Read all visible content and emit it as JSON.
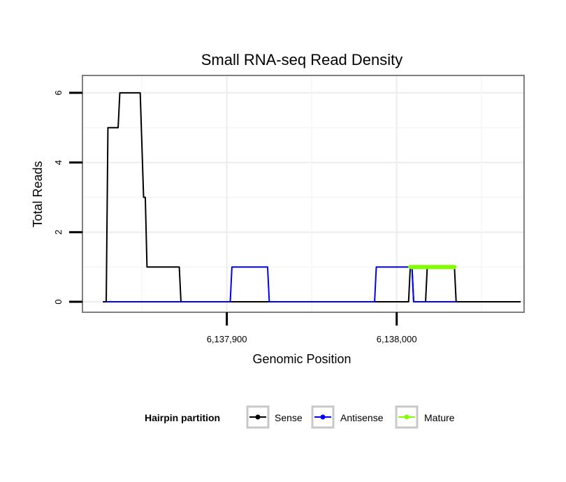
{
  "chart_data": {
    "type": "line",
    "title": "Small RNA-seq Read Density",
    "xlabel": "Genomic Position",
    "ylabel": "Total Reads",
    "xlim": [
      6137815,
      6138075
    ],
    "ylim": [
      -0.3,
      6.5
    ],
    "grid": true,
    "x_ticks": [
      {
        "value": 6137900,
        "label": "6,137,900"
      },
      {
        "value": 6138000,
        "label": "6,138,000"
      }
    ],
    "y_ticks": [
      {
        "value": 0,
        "label": "0"
      },
      {
        "value": 2,
        "label": "2"
      },
      {
        "value": 4,
        "label": "4"
      },
      {
        "value": 6,
        "label": "6"
      }
    ],
    "legend": {
      "title": "Hairpin partition",
      "placement": "bottom",
      "entries": [
        "Sense",
        "Antisense",
        "Mature"
      ]
    },
    "series": [
      {
        "name": "Sense",
        "color": "#000000",
        "width": 2,
        "points": [
          [
            6137827,
            0
          ],
          [
            6137829,
            0
          ],
          [
            6137830,
            5
          ],
          [
            6137836,
            5
          ],
          [
            6137837,
            6
          ],
          [
            6137849,
            6
          ],
          [
            6137851,
            3
          ],
          [
            6137852,
            3
          ],
          [
            6137853,
            1
          ],
          [
            6137872,
            1
          ],
          [
            6137873,
            0
          ],
          [
            6138007,
            0
          ],
          [
            6138008,
            1
          ],
          [
            6138009,
            1
          ],
          [
            6138010,
            0
          ],
          [
            6138017,
            0
          ],
          [
            6138018,
            1
          ],
          [
            6138034,
            1
          ],
          [
            6138035,
            0
          ],
          [
            6138073,
            0
          ]
        ]
      },
      {
        "name": "Antisense",
        "color": "#0000ff",
        "width": 2,
        "points": [
          [
            6137829,
            0
          ],
          [
            6137902,
            0
          ],
          [
            6137903,
            1
          ],
          [
            6137924,
            1
          ],
          [
            6137925,
            0
          ],
          [
            6137987,
            0
          ],
          [
            6137988,
            1
          ],
          [
            6138009,
            1
          ],
          [
            6138010,
            0
          ],
          [
            6138035,
            0
          ]
        ]
      },
      {
        "name": "Mature",
        "color": "#7fff00",
        "width": 6,
        "points": [
          [
            6138008,
            1
          ],
          [
            6138034,
            1
          ]
        ]
      }
    ]
  }
}
